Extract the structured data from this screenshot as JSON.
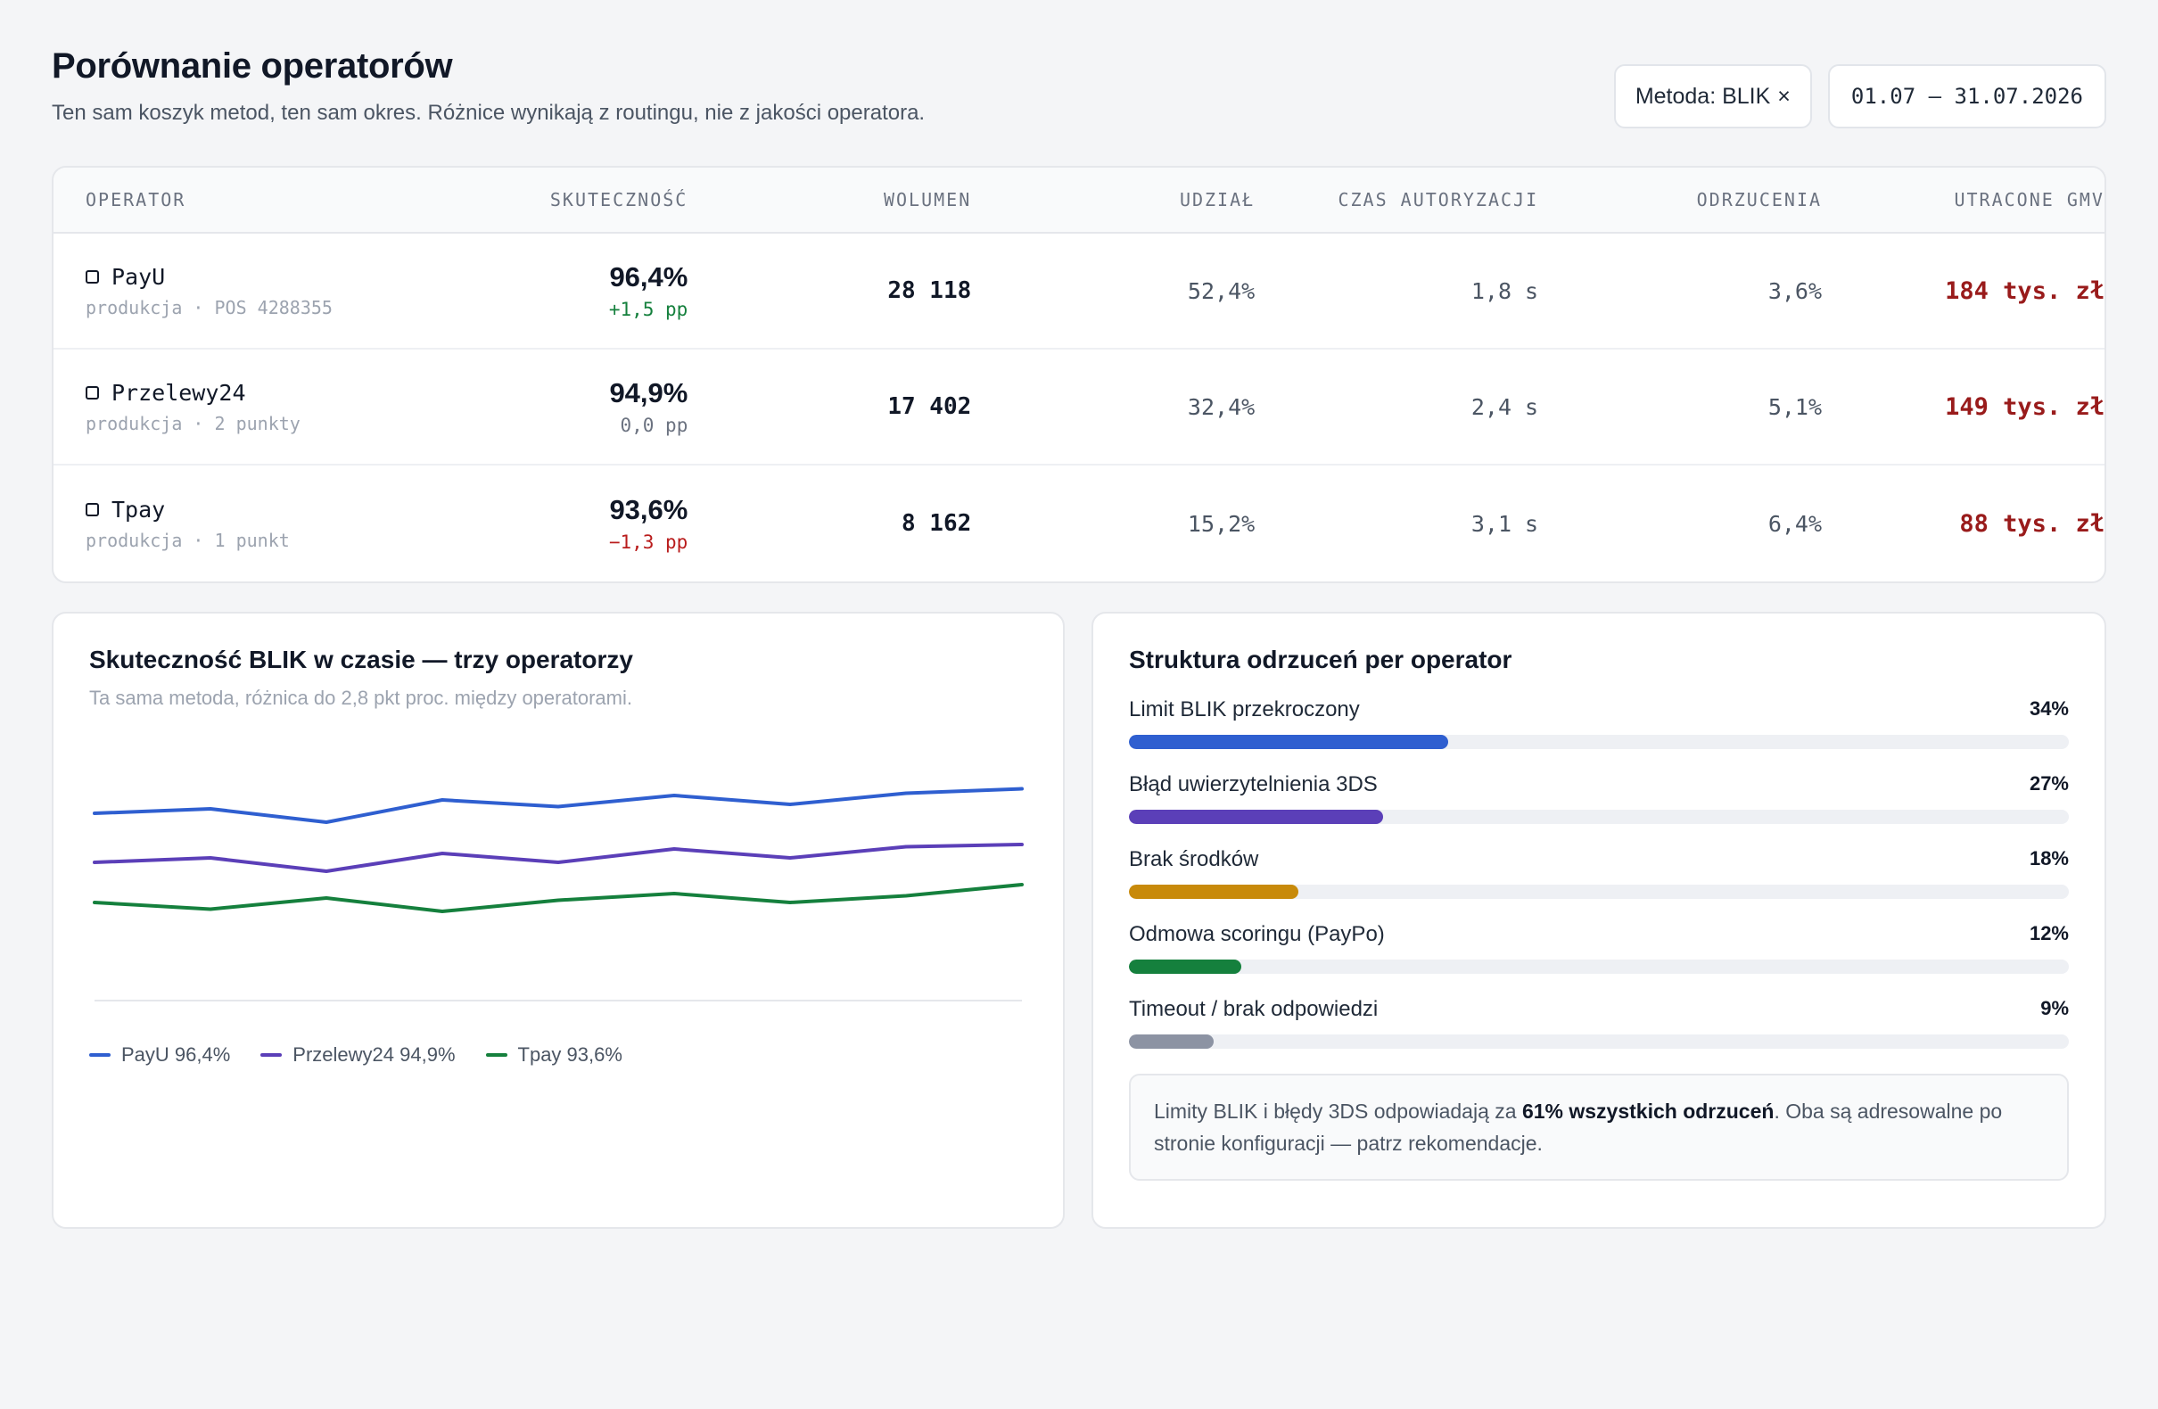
{
  "header": {
    "title": "Porównanie operatorów",
    "subtitle": "Ten sam koszyk metod, ten sam okres. Różnice wynikają z routingu, nie z jakości operatora.",
    "filter_label": "Metoda: BLIK",
    "filter_remove": "×",
    "date_range": "01.07 – 31.07.2026"
  },
  "table": {
    "columns": [
      "OPERATOR",
      "SKUTECZNOŚĆ",
      "WOLUMEN",
      "UDZIAŁ",
      "CZAS AUTORYZACJI",
      "ODRZUCENIA",
      "UTRACONE GMV"
    ],
    "rows": [
      {
        "name": "PayU",
        "meta": "produkcja · POS 4288355",
        "success": "96,4%",
        "delta": "+1,5 pp",
        "delta_color": "#15803d",
        "volume": "28 118",
        "share": "52,4%",
        "auth_time": "1,8 s",
        "rejections": "3,6%",
        "lost_gmv": "184 tys. zł"
      },
      {
        "name": "Przelewy24",
        "meta": "produkcja · 2 punkty",
        "success": "94,9%",
        "delta": "0,0 pp",
        "delta_color": "#6b7280",
        "volume": "17 402",
        "share": "32,4%",
        "auth_time": "2,4 s",
        "rejections": "5,1%",
        "lost_gmv": "149 tys. zł"
      },
      {
        "name": "Tpay",
        "meta": "produkcja · 1 punkt",
        "success": "93,6%",
        "delta": "−1,3 pp",
        "delta_color": "#b91c1c",
        "volume": "8 162",
        "share": "15,2%",
        "auth_time": "3,1 s",
        "rejections": "6,4%",
        "lost_gmv": "88 tys. zł"
      }
    ]
  },
  "trend_card": {
    "title": "Skuteczność BLIK w czasie — trzy operatorzy",
    "subtitle": "Ta sama metoda, różnica do 2,8 pkt proc. między operatorami.",
    "legend": [
      {
        "label": "PayU 96,4%",
        "color": "#2f5fd0"
      },
      {
        "label": "Przelewy24 94,9%",
        "color": "#5b3fb8"
      },
      {
        "label": "Tpay 93,6%",
        "color": "#15803d"
      }
    ]
  },
  "chart_data": {
    "type": "line",
    "title": "Skuteczność BLIK w czasie — trzy operatorzy",
    "xlabel": "",
    "ylabel": "",
    "x": [
      1,
      2,
      3,
      4,
      5,
      6,
      7,
      8,
      9
    ],
    "ylim": [
      91.5,
      97.5
    ],
    "grid": false,
    "legend_position": "bottom-left",
    "series": [
      {
        "name": "PayU",
        "color": "#2f5fd0",
        "values": [
          95.7,
          95.8,
          95.5,
          96.0,
          95.85,
          96.1,
          95.9,
          96.15,
          96.25
        ]
      },
      {
        "name": "Przelewy24",
        "color": "#5b3fb8",
        "values": [
          94.6,
          94.7,
          94.4,
          94.8,
          94.6,
          94.9,
          94.7,
          94.95,
          95.0
        ]
      },
      {
        "name": "Tpay",
        "color": "#15803d",
        "values": [
          93.7,
          93.55,
          93.8,
          93.5,
          93.75,
          93.9,
          93.7,
          93.85,
          94.1
        ]
      }
    ]
  },
  "rejections_card": {
    "title": "Struktura odrzuceń per operator",
    "items": [
      {
        "label": "Limit BLIK przekroczony",
        "pct": "34%",
        "value": 34,
        "color": "#2f5fd0"
      },
      {
        "label": "Błąd uwierzytelnienia 3DS",
        "pct": "27%",
        "value": 27,
        "color": "#5b3fb8"
      },
      {
        "label": "Brak środków",
        "pct": "18%",
        "value": 18,
        "color": "#c88a0a"
      },
      {
        "label": "Odmowa scoringu (PayPo)",
        "pct": "12%",
        "value": 12,
        "color": "#15803d"
      },
      {
        "label": "Timeout / brak odpowiedzi",
        "pct": "9%",
        "value": 9,
        "color": "#8c93a3"
      }
    ],
    "note_pre": "Limity BLIK i błędy 3DS odpowiadają za ",
    "note_bold": "61% wszystkich odrzuceń",
    "note_post": ". Oba są adresowalne po stronie konfiguracji — patrz rekomendacje."
  }
}
